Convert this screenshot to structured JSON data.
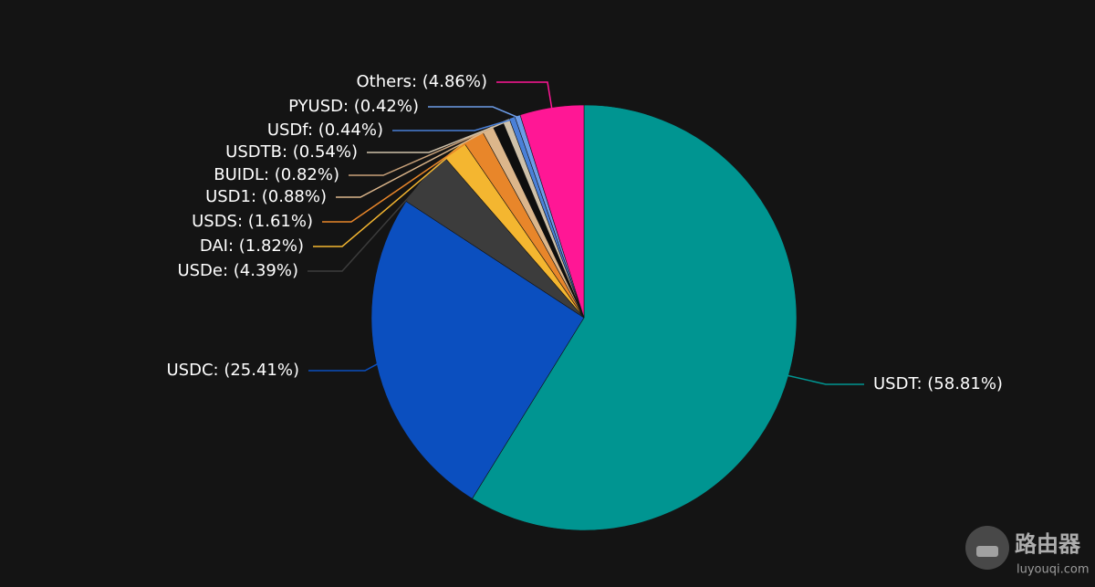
{
  "chart_data": {
    "type": "pie",
    "values": [
      58.81,
      25.41,
      4.39,
      1.82,
      1.61,
      0.88,
      0.82,
      0.54,
      0.44,
      0.42,
      4.86
    ],
    "value_labels": [
      "USDT: (58.81%)",
      "USDC: (25.41%)",
      "USDe: (4.39%)",
      "DAI: (1.82%)",
      "USDS: (1.61%)",
      "USD1: (0.88%)",
      "BUIDL: (0.82%)",
      "USDTB: (0.54%)",
      "USDf: (0.44%)",
      "PYUSD: (0.42%)",
      "Others: (4.86%)"
    ],
    "colors": [
      "#009591",
      "#0b4fbf",
      "#3c3c3c",
      "#f4b630",
      "#e8862a",
      "#dcb68b",
      "#0e0e0e",
      "#cfc1aa",
      "#4a80d8",
      "#6c9be6",
      "#ff1795"
    ]
  },
  "watermark": {
    "name": "路由器",
    "site": "luyouqi.com"
  }
}
